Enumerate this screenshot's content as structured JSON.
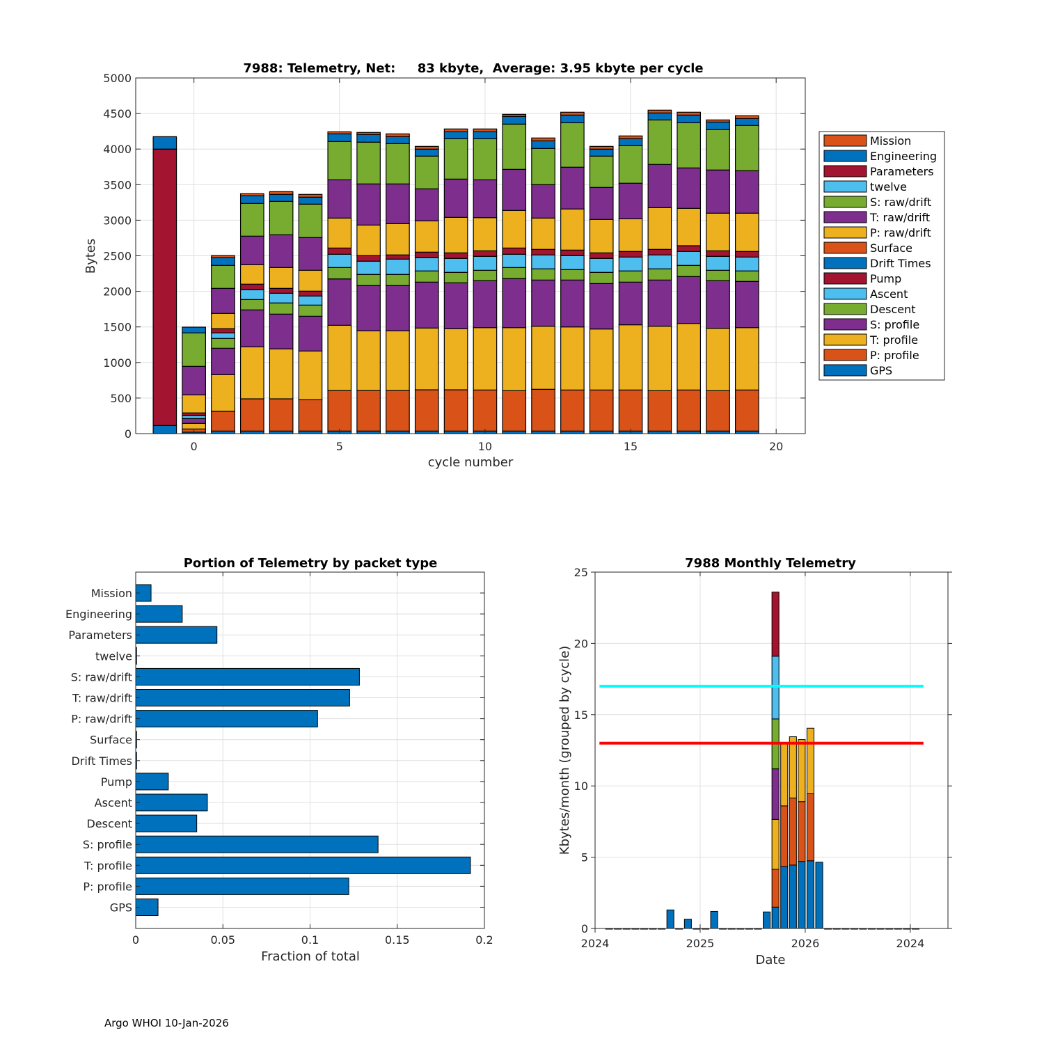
{
  "footer": "Argo WHOI 10-Jan-2026",
  "colors": {
    "blue": "#0072BD",
    "orange": "#D95319",
    "yellow": "#EDB120",
    "purple": "#7E2F8E",
    "green": "#77AC30",
    "lightblue": "#4DBEEE",
    "red": "#A2142F",
    "cyan_line": "#00FFFF",
    "red_line": "#FF0000"
  },
  "chart_data": [
    {
      "type": "bar",
      "stacked": true,
      "title": "7988: Telemetry, Net:     83 kbyte,  Average: 3.95 kbyte per cycle",
      "xlabel": "cycle number",
      "ylabel": "Bytes",
      "xlim": [
        -2,
        21
      ],
      "ylim": [
        0,
        5000
      ],
      "xticks": [
        0,
        5,
        10,
        15,
        20
      ],
      "yticks": [
        0,
        500,
        1000,
        1500,
        2000,
        2500,
        3000,
        3500,
        4000,
        4500,
        5000
      ],
      "grid": true,
      "legend_position": "right-outside",
      "legend": [
        "Mission",
        "Engineering",
        "Parameters",
        "twelve",
        "S: raw/drift",
        "T: raw/drift",
        "P: raw/drift",
        "Surface",
        "Drift Times",
        "Pump",
        "Ascent",
        "Descent",
        "S: profile",
        "T: profile",
        "P: profile",
        "GPS"
      ],
      "stack_order": [
        "GPS",
        "P: profile",
        "T: profile",
        "S: profile",
        "Descent",
        "Ascent",
        "Pump",
        "Drift Times",
        "Surface",
        "P: raw/drift",
        "T: raw/drift",
        "S: raw/drift",
        "twelve",
        "Parameters",
        "Engineering",
        "Mission"
      ],
      "series_colors": {
        "GPS": "#0072BD",
        "P: profile": "#D95319",
        "T: profile": "#EDB120",
        "S: profile": "#7E2F8E",
        "Descent": "#77AC30",
        "Ascent": "#4DBEEE",
        "Pump": "#A2142F",
        "Drift Times": "#0072BD",
        "Surface": "#D95319",
        "P: raw/drift": "#EDB120",
        "T: raw/drift": "#7E2F8E",
        "S: raw/drift": "#77AC30",
        "twelve": "#4DBEEE",
        "Parameters": "#A2142F",
        "Engineering": "#0072BD",
        "Mission": "#D95319"
      },
      "categories": [
        -1,
        0,
        1,
        2,
        3,
        4,
        5,
        6,
        7,
        8,
        9,
        10,
        11,
        12,
        13,
        14,
        15,
        16,
        17,
        18,
        19
      ],
      "values_by_cycle": [
        [
          114,
          0,
          0,
          0,
          0,
          0,
          0,
          0,
          0,
          0,
          0,
          0,
          0,
          3886,
          175,
          0
        ],
        [
          20,
          45,
          79,
          68,
          0,
          39,
          40,
          0,
          0,
          254,
          401,
          470,
          0,
          0,
          81,
          0
        ],
        [
          36,
          277,
          516,
          371,
          138,
          78,
          59,
          0,
          0,
          215,
          352,
          323,
          0,
          0,
          107,
          30
        ],
        [
          36,
          453,
          731,
          519,
          146,
          137,
          79,
          0,
          0,
          274,
          401,
          460,
          0,
          0,
          107,
          30
        ],
        [
          36,
          453,
          702,
          489,
          157,
          136,
          69,
          0,
          0,
          294,
          459,
          470,
          0,
          0,
          98,
          39
        ],
        [
          36,
          440,
          685,
          489,
          157,
          127,
          69,
          0,
          0,
          293,
          460,
          470,
          0,
          0,
          98,
          39
        ],
        [
          36,
          570,
          917,
          652,
          160,
          186,
          88,
          0,
          0,
          421,
          538,
          538,
          0,
          0,
          108,
          29
        ],
        [
          36,
          570,
          839,
          636,
          157,
          186,
          78,
          0,
          0,
          430,
          578,
          587,
          0,
          0,
          107,
          30
        ],
        [
          36,
          570,
          839,
          636,
          157,
          215,
          59,
          0,
          0,
          440,
          558,
          567,
          0,
          0,
          98,
          39
        ],
        [
          36,
          580,
          868,
          646,
          157,
          186,
          78,
          0,
          0,
          440,
          450,
          460,
          0,
          0,
          98,
          39
        ],
        [
          36,
          580,
          859,
          645,
          147,
          196,
          78,
          0,
          0,
          499,
          538,
          568,
          0,
          0,
          97,
          40
        ],
        [
          36,
          577,
          877,
          660,
          146,
          196,
          78,
          0,
          0,
          466,
          532,
          578,
          0,
          0,
          97,
          40
        ],
        [
          36,
          567,
          887,
          689,
          156,
          186,
          88,
          0,
          0,
          529,
          577,
          636,
          0,
          0,
          108,
          29
        ],
        [
          36,
          587,
          887,
          649,
          157,
          196,
          78,
          0,
          0,
          440,
          470,
          509,
          0,
          0,
          107,
          40
        ],
        [
          36,
          577,
          887,
          659,
          147,
          196,
          78,
          0,
          0,
          578,
          587,
          626,
          0,
          0,
          107,
          40
        ],
        [
          36,
          577,
          858,
          639,
          157,
          196,
          78,
          0,
          0,
          470,
          450,
          440,
          0,
          0,
          98,
          39
        ],
        [
          36,
          577,
          917,
          600,
          157,
          195,
          79,
          0,
          0,
          459,
          500,
          528,
          0,
          0,
          98,
          39
        ],
        [
          36,
          567,
          907,
          649,
          157,
          196,
          78,
          0,
          0,
          587,
          607,
          626,
          0,
          0,
          98,
          39
        ],
        [
          36,
          577,
          936,
          659,
          157,
          196,
          81,
          0,
          0,
          525,
          568,
          636,
          0,
          0,
          107,
          40
        ],
        [
          36,
          567,
          878,
          669,
          146,
          196,
          78,
          0,
          0,
          529,
          607,
          567,
          0,
          0,
          107,
          30
        ],
        [
          36,
          577,
          877,
          650,
          147,
          195,
          79,
          0,
          0,
          538,
          597,
          636,
          0,
          0,
          97,
          40
        ]
      ],
      "bar_width": 0.8
    },
    {
      "type": "bar",
      "orientation": "horizontal",
      "title": "Portion of Telemetry by packet type",
      "xlabel": "Fraction of total",
      "ylabel": "",
      "xlim": [
        0,
        0.2
      ],
      "xticks": [
        0,
        0.05,
        0.1,
        0.15,
        0.2
      ],
      "xtick_labels": [
        "0",
        "0.05",
        "0.1",
        "0.15",
        "0.2"
      ],
      "grid": true,
      "categories": [
        "Mission",
        "Engineering",
        "Parameters",
        "twelve",
        "S: raw/drift",
        "T: raw/drift",
        "P: raw/drift",
        "Surface",
        "Drift Times",
        "Pump",
        "Ascent",
        "Descent",
        "S: profile",
        "T: profile",
        "P: profile",
        "GPS"
      ],
      "values": [
        0.0088,
        0.0267,
        0.0466,
        0.0005,
        0.1283,
        0.1227,
        0.1043,
        0.0005,
        0.0005,
        0.0187,
        0.0411,
        0.035,
        0.139,
        0.192,
        0.1222,
        0.0128
      ],
      "color": "#0072BD"
    },
    {
      "type": "bar",
      "stacked": true,
      "title": "7988 Monthly Telemetry",
      "xlabel": "Date",
      "ylabel": "Kbytes/month (grouped by cycle)",
      "ylim": [
        0,
        25
      ],
      "yticks": [
        0,
        5,
        10,
        15,
        20,
        25
      ],
      "xlim_months_from_2024_01": [
        0,
        40.3
      ],
      "xticks_months_from_2024_01": [
        0,
        12,
        24,
        36
      ],
      "xtick_labels": [
        "2024",
        "2025",
        "2026",
        "2024"
      ],
      "grid": true,
      "hlines": [
        {
          "y": 17,
          "color": "#00FFFF"
        },
        {
          "y": 13,
          "color": "#FF0000"
        }
      ],
      "segment_colors": [
        "#0072BD",
        "#D95319",
        "#EDB120",
        "#7E2F8E",
        "#77AC30",
        "#4DBEEE",
        "#A2142F"
      ],
      "months": [
        "2024-02",
        "2024-03",
        "2024-04",
        "2024-05",
        "2024-06",
        "2024-07",
        "2024-08",
        "2024-09",
        "2024-10",
        "2024-11",
        "2024-12",
        "2025-01",
        "2025-02",
        "2025-03",
        "2025-04",
        "2025-05",
        "2025-06",
        "2025-07",
        "2025-08",
        "2025-09",
        "2025-10",
        "2025-11",
        "2025-12",
        "2026-01",
        "2026-02",
        "2026-03",
        "2026-04",
        "2026-05",
        "2026-06",
        "2026-07",
        "2026-08",
        "2026-09",
        "2026-10",
        "2026-11",
        "2026-12",
        "2027-01"
      ],
      "segments_by_month": [
        [
          0
        ],
        [
          0
        ],
        [
          0
        ],
        [
          0
        ],
        [
          0
        ],
        [
          0
        ],
        [
          0
        ],
        [
          1.3
        ],
        [
          0
        ],
        [
          0.65
        ],
        [
          0
        ],
        [
          0
        ],
        [
          1.2
        ],
        [
          0
        ],
        [
          0
        ],
        [
          0
        ],
        [
          0
        ],
        [
          0
        ],
        [
          1.16
        ],
        [
          1.5,
          2.65,
          3.5,
          3.55,
          3.5,
          4.4,
          4.5
        ],
        [
          4.35,
          4.25,
          4.4
        ],
        [
          4.45,
          4.7,
          4.3
        ],
        [
          4.7,
          4.2,
          4.35
        ],
        [
          4.75,
          4.7,
          4.6
        ],
        [
          4.65
        ],
        [
          0
        ],
        [
          0
        ],
        [
          0
        ],
        [
          0
        ],
        [
          0
        ],
        [
          0
        ],
        [
          0
        ],
        [
          0
        ],
        [
          0
        ],
        [
          0
        ],
        [
          0
        ]
      ]
    }
  ]
}
